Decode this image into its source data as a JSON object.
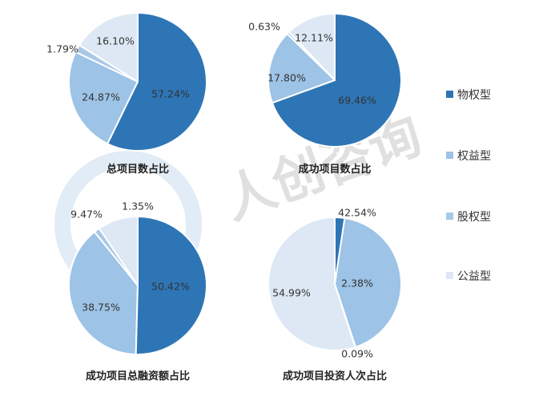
{
  "colors": {
    "物权型": "#2e75b6",
    "权益型": "#9dc3e6",
    "股权型": "#a9c8e8",
    "公益型": "#dde8f4"
  },
  "watermark": {
    "text": "人创咨询"
  },
  "legend": [
    "物权型",
    "权益型",
    "股权型",
    "公益型"
  ],
  "chart_data": [
    {
      "type": "pie",
      "title": "总项目数占比",
      "slices": [
        {
          "name": "物权型",
          "value": 57.24,
          "label": "57.24%"
        },
        {
          "name": "权益型",
          "value": 24.87,
          "label": "24.87%"
        },
        {
          "name": "股权型",
          "value": 1.79,
          "label": "1.79%"
        },
        {
          "name": "公益型",
          "value": 16.1,
          "label": "16.10%"
        }
      ]
    },
    {
      "type": "pie",
      "title": "成功项目数占比",
      "slices": [
        {
          "name": "物权型",
          "value": 69.46,
          "label": "69.46%"
        },
        {
          "name": "权益型",
          "value": 17.8,
          "label": "17.80%"
        },
        {
          "name": "股权型",
          "value": 0.63,
          "label": "0.63%"
        },
        {
          "name": "公益型",
          "value": 12.11,
          "label": "12.11%"
        }
      ]
    },
    {
      "type": "pie",
      "title": "成功项目总融资额占比",
      "slices": [
        {
          "name": "物权型",
          "value": 50.42,
          "label": "50.42%"
        },
        {
          "name": "权益型",
          "value": 38.75,
          "label": "38.75%"
        },
        {
          "name": "股权型",
          "value": 1.35,
          "label": "1.35%"
        },
        {
          "name": "公益型",
          "value": 9.47,
          "label": "9.47%"
        }
      ]
    },
    {
      "type": "pie",
      "title": "成功项目投资人次占比",
      "slices": [
        {
          "name": "物权型",
          "value": 2.38,
          "label": "2.38%"
        },
        {
          "name": "权益型",
          "value": 42.54,
          "label": "42.54%"
        },
        {
          "name": "股权型",
          "value": 0.09,
          "label": "0.09%"
        },
        {
          "name": "公益型",
          "value": 54.99,
          "label": "54.99%"
        }
      ]
    }
  ]
}
